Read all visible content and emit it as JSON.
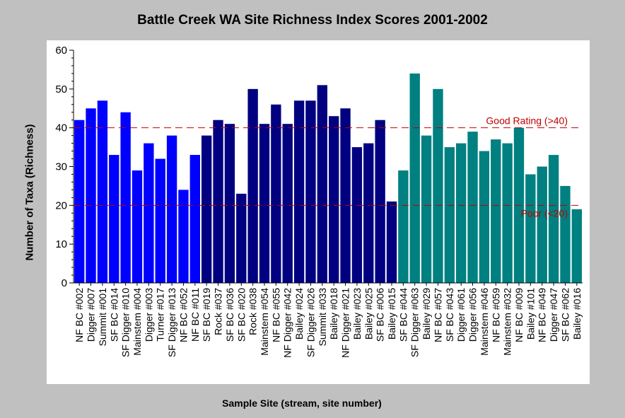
{
  "chart_data": {
    "type": "bar",
    "title": "Battle Creek WA Site Richness Index Scores 2001-2002",
    "xlabel": "Sample Site (stream, site number)",
    "ylabel": "Number of Taxa (Richness)",
    "ylim": [
      0,
      60
    ],
    "yticks": [
      0,
      10,
      20,
      30,
      40,
      50,
      60
    ],
    "categories": [
      "NF BC #002",
      "Digger #007",
      "Summit #001",
      "SF BC #014",
      "SF Digger #010",
      "Mainstem #004",
      "Digger #003",
      "Turner #017",
      "SF Digger #013",
      "NF BC #052",
      "NF BC #011",
      "SF BC #019",
      "Rock #037",
      "SF BC #036",
      "SF BC #020",
      "Rock #038",
      "Mainstem #054",
      "NF BC #055",
      "NF Digger #042",
      "Bailey #024",
      "SF Digger #026",
      "Summit #033",
      "Bailey #018",
      "NF Digger #021",
      "Bailey #023",
      "Bailey #025",
      "SF BC #006",
      "Bailey #015",
      "SF BC #044",
      "SF Digger #063",
      "Bailey #029",
      "NF BC #057",
      "SF BC #043",
      "Digger #061",
      "Digger #056",
      "Mainstem #046",
      "NF BC #059",
      "Mainstem #032",
      "NF BC #009",
      "Bailey #101",
      "NF BC #049",
      "Digger #047",
      "SF BC #062",
      "Bailey #016"
    ],
    "values": [
      42,
      45,
      47,
      33,
      44,
      29,
      36,
      32,
      38,
      24,
      33,
      38,
      42,
      41,
      23,
      50,
      41,
      46,
      41,
      47,
      47,
      51,
      43,
      45,
      35,
      36,
      42,
      21,
      29,
      54,
      38,
      50,
      35,
      36,
      39,
      34,
      37,
      36,
      40,
      28,
      30,
      33,
      25,
      19
    ],
    "bar_colors": [
      "#0000ff",
      "#0000ff",
      "#0000ff",
      "#0000ff",
      "#0000ff",
      "#0000ff",
      "#0000ff",
      "#0000ff",
      "#0000ff",
      "#0000ff",
      "#0000ff",
      "#000080",
      "#000080",
      "#000080",
      "#000080",
      "#000080",
      "#000080",
      "#000080",
      "#000080",
      "#000080",
      "#000080",
      "#000080",
      "#000080",
      "#000080",
      "#000080",
      "#000080",
      "#000080",
      "#000080",
      "#008080",
      "#008080",
      "#008080",
      "#008080",
      "#008080",
      "#008080",
      "#008080",
      "#008080",
      "#008080",
      "#008080",
      "#008080",
      "#008080",
      "#008080",
      "#008080",
      "#008080",
      "#008080"
    ],
    "reference_lines": [
      {
        "value": 40,
        "label": "Good Rating  (>40)",
        "color": "#c00000"
      },
      {
        "value": 20,
        "label": "Poor (<20)",
        "color": "#c00000"
      }
    ],
    "background": "#ffffff",
    "grid": false
  }
}
